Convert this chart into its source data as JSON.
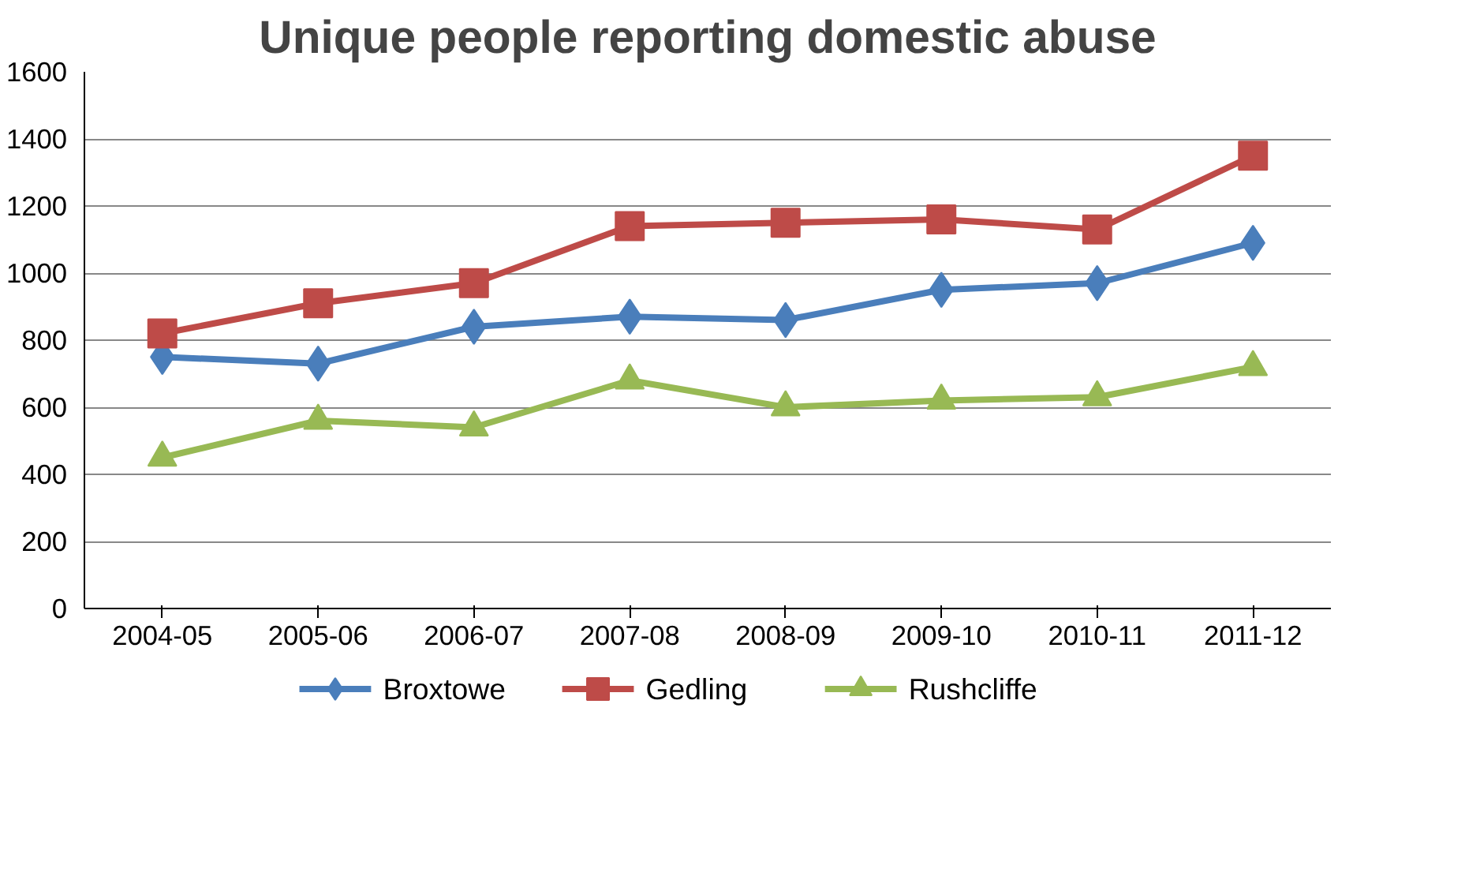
{
  "chart_data": {
    "type": "line",
    "title": "Unique people reporting domestic abuse",
    "categories": [
      "2004-05",
      "2005-06",
      "2006-07",
      "2007-08",
      "2008-09",
      "2009-10",
      "2010-11",
      "2011-12"
    ],
    "series": [
      {
        "name": "Broxtowe",
        "color": "#4a7ebb",
        "marker": "diamond",
        "values": [
          750,
          730,
          840,
          870,
          860,
          950,
          970,
          1090
        ]
      },
      {
        "name": "Gedling",
        "color": "#be4b48",
        "marker": "square",
        "values": [
          820,
          910,
          970,
          1140,
          1150,
          1160,
          1130,
          1350
        ]
      },
      {
        "name": "Rushcliffe",
        "color": "#98b954",
        "marker": "triangle",
        "values": [
          450,
          560,
          540,
          680,
          600,
          620,
          630,
          720
        ]
      }
    ],
    "ylim": [
      0,
      1600
    ],
    "yticks": [
      0,
      200,
      400,
      600,
      800,
      1000,
      1200,
      1400,
      1600
    ],
    "grid": "y",
    "legend": "bottom",
    "line_style": "solid"
  }
}
